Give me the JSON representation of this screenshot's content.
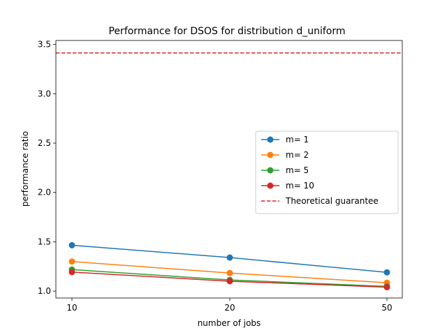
{
  "chart_data": {
    "type": "line",
    "title": "Performance for DSOS for distribution d_uniform",
    "xlabel": "number of jobs",
    "ylabel": "performance ratio",
    "x_categories": [
      "10",
      "20",
      "50"
    ],
    "ylim": [
      0.93,
      3.54
    ],
    "yticks": [
      "1.0",
      "1.5",
      "2.0",
      "2.5",
      "3.0",
      "3.5"
    ],
    "ytick_values": [
      1.0,
      1.5,
      2.0,
      2.5,
      3.0,
      3.5
    ],
    "grid": false,
    "legend_position": "center-right",
    "series": [
      {
        "name": "m= 1",
        "color": "#1f77b4",
        "values": [
          1.465,
          1.34,
          1.19
        ]
      },
      {
        "name": "m= 2",
        "color": "#ff7f0e",
        "values": [
          1.3,
          1.183,
          1.085
        ]
      },
      {
        "name": "m= 5",
        "color": "#2ca02c",
        "values": [
          1.218,
          1.113,
          1.048
        ]
      },
      {
        "name": "m= 10",
        "color": "#d62728",
        "values": [
          1.193,
          1.1,
          1.04
        ]
      }
    ],
    "reference_lines": [
      {
        "name": "Theoretical guarantee",
        "color": "#d62728",
        "style": "dashed",
        "value": 3.414
      }
    ]
  }
}
